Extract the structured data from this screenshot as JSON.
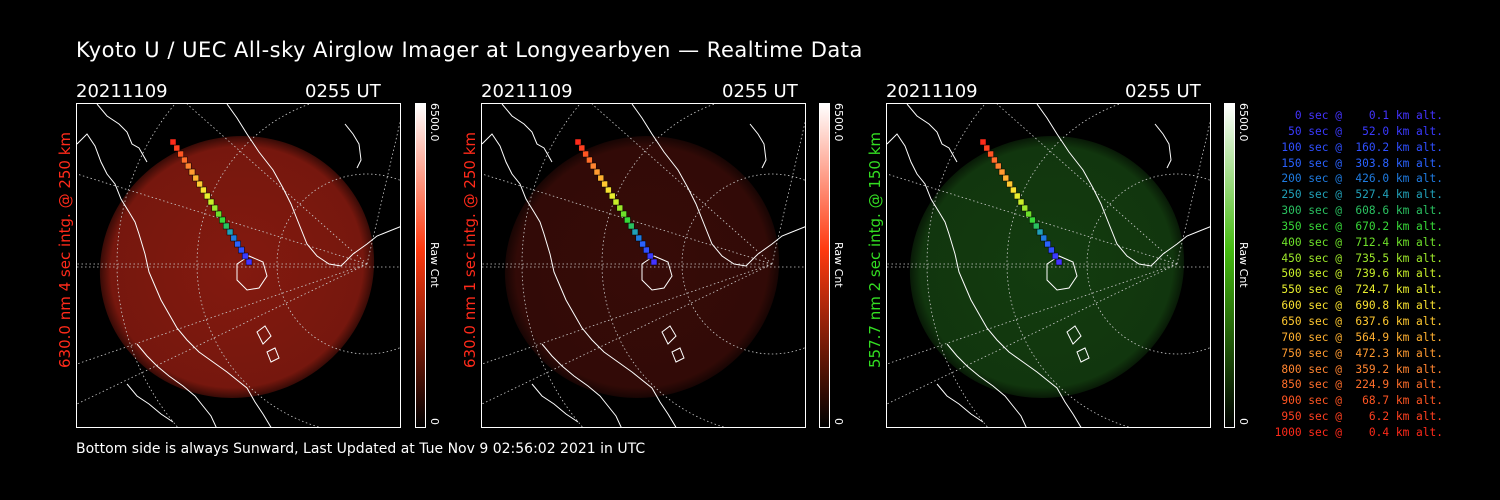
{
  "title": "Kyoto U / UEC All-sky Airglow Imager at Longyearbyen — Realtime Data",
  "footer": "Bottom side is always Sunward, Last Updated at Tue Nov  9 02:56:02 2021 in UTC",
  "panels": [
    {
      "date": "20211109",
      "time": "0255 UT",
      "side_label": "630.0 nm  4 sec intg. @ 250 km",
      "label_color": "#ff2a1a",
      "cbar_max": "6500.0",
      "cbar_min": "0",
      "cbar_unit": "Raw Cnt",
      "cbar_color": "#ff3a10",
      "image_color": "#8a1b10",
      "image_opacity": 0.95
    },
    {
      "date": "20211109",
      "time": "0255 UT",
      "side_label": "630.0 nm  1 sec intg. @ 250 km",
      "label_color": "#ff2a1a",
      "cbar_max": "6500.0",
      "cbar_min": "0",
      "cbar_unit": "Raw Cnt",
      "cbar_color": "#ff3a10",
      "image_color": "#3a0c08",
      "image_opacity": 0.95
    },
    {
      "date": "20211109",
      "time": "0255 UT",
      "side_label": "557.7 nm  2 sec intg. @ 150 km",
      "label_color": "#33dd22",
      "cbar_max": "6500.0",
      "cbar_min": "0",
      "cbar_unit": "Raw Cnt",
      "cbar_color": "#44bb10",
      "image_color": "#143f10",
      "image_opacity": 0.95
    }
  ],
  "chart_data": {
    "type": "scatter",
    "trajectory_legend": [
      {
        "text": "   0 sec @    0.1 km alt.",
        "color": "#4433ff",
        "time": 0,
        "alt": 0.1
      },
      {
        "text": "  50 sec @   52.0 km alt.",
        "color": "#3a3aff",
        "time": 50,
        "alt": 52.0
      },
      {
        "text": " 100 sec @  160.2 km alt.",
        "color": "#2f4fff",
        "time": 100,
        "alt": 160.2
      },
      {
        "text": " 150 sec @  303.8 km alt.",
        "color": "#2a62ff",
        "time": 150,
        "alt": 303.8
      },
      {
        "text": " 200 sec @  426.0 km alt.",
        "color": "#1f7be0",
        "time": 200,
        "alt": 426.0
      },
      {
        "text": " 250 sec @  527.4 km alt.",
        "color": "#21a0b8",
        "time": 250,
        "alt": 527.4
      },
      {
        "text": " 300 sec @  608.6 km alt.",
        "color": "#2ac060",
        "time": 300,
        "alt": 608.6
      },
      {
        "text": " 350 sec @  670.2 km alt.",
        "color": "#38d838",
        "time": 350,
        "alt": 670.2
      },
      {
        "text": " 400 sec @  712.4 km alt.",
        "color": "#6ee02a",
        "time": 400,
        "alt": 712.4
      },
      {
        "text": " 450 sec @  735.5 km alt.",
        "color": "#9de82a",
        "time": 450,
        "alt": 735.5
      },
      {
        "text": " 500 sec @  739.6 km alt.",
        "color": "#c8ee2a",
        "time": 500,
        "alt": 739.6
      },
      {
        "text": " 550 sec @  724.7 km alt.",
        "color": "#e8ee2e",
        "time": 550,
        "alt": 724.7
      },
      {
        "text": " 600 sec @  690.8 km alt.",
        "color": "#f8e030",
        "time": 600,
        "alt": 690.8
      },
      {
        "text": " 650 sec @  637.6 km alt.",
        "color": "#ffc830",
        "time": 650,
        "alt": 637.6
      },
      {
        "text": " 700 sec @  564.9 km alt.",
        "color": "#ffb030",
        "time": 700,
        "alt": 564.9
      },
      {
        "text": " 750 sec @  472.3 km alt.",
        "color": "#ff9a30",
        "time": 750,
        "alt": 472.3
      },
      {
        "text": " 800 sec @  359.2 km alt.",
        "color": "#ff8430",
        "time": 800,
        "alt": 359.2
      },
      {
        "text": " 850 sec @  224.9 km alt.",
        "color": "#ff6e2a",
        "time": 850,
        "alt": 224.9
      },
      {
        "text": " 900 sec @   68.7 km alt.",
        "color": "#ff5522",
        "time": 900,
        "alt": 68.7
      },
      {
        "text": " 950 sec @    6.2 km alt.",
        "color": "#ff4020",
        "time": 950,
        "alt": 6.2
      },
      {
        "text": "1000 sec @    0.4 km alt.",
        "color": "#ff2a1a",
        "time": 1000,
        "alt": 0.4
      }
    ]
  }
}
